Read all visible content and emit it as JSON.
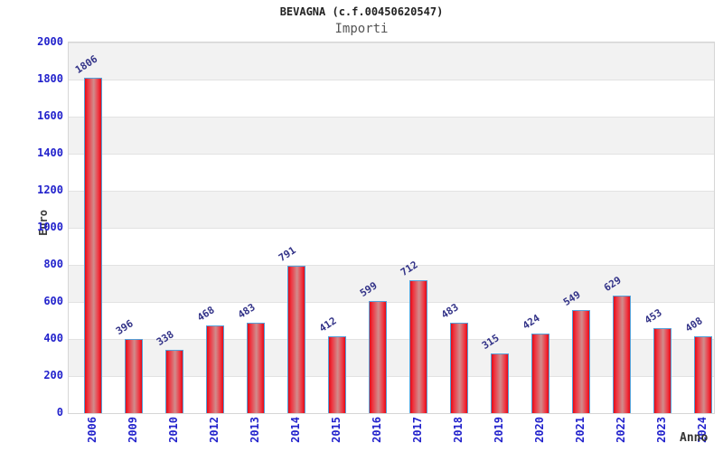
{
  "header": {
    "title": "BEVAGNA (c.f.00450620547)",
    "subtitle": "Importi"
  },
  "chart_data": {
    "type": "bar",
    "categories": [
      "2006",
      "2009",
      "2010",
      "2012",
      "2013",
      "2014",
      "2015",
      "2016",
      "2017",
      "2018",
      "2019",
      "2020",
      "2021",
      "2022",
      "2023",
      "2024"
    ],
    "values": [
      1806,
      396,
      338,
      468,
      483,
      791,
      412,
      599,
      712,
      483,
      315,
      424,
      549,
      629,
      453,
      408
    ],
    "title": "BEVAGNA (c.f.00450620547)",
    "subtitle": "Importi",
    "xlabel": "Anno",
    "ylabel": "Euro",
    "ylim": [
      0,
      2000
    ],
    "ytick_step": 200,
    "grid": "horizontal-bands",
    "legend": "none",
    "value_labels_shown": true
  },
  "colors": {
    "bar_fill_edge": "#e30b16",
    "bar_fill_center": "#d18c8c",
    "bar_border": "#55a0d8",
    "tick_label_blue": "#2222cc",
    "value_label_navy": "#333388",
    "band_gray": "#f2f2f2",
    "band_white": "#ffffff",
    "gridline": "#e2e2e2",
    "plot_border": "#d6d6d6",
    "title_color": "#222222",
    "subtitle_color": "#555555",
    "axis_title_color": "#3a3a3a"
  }
}
